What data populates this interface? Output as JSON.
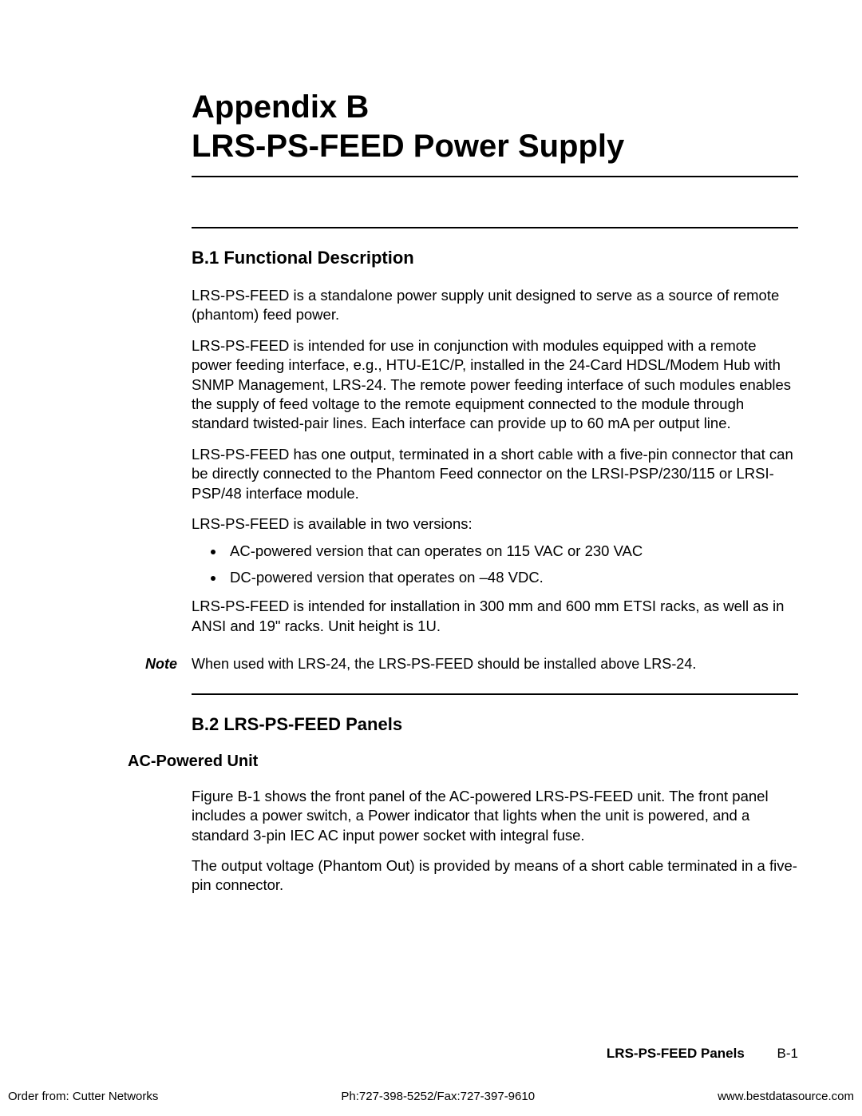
{
  "title": {
    "line1": "Appendix B",
    "line2": "LRS-PS-FEED Power Supply"
  },
  "section1": {
    "heading": "B.1  Functional Description",
    "p1": "LRS-PS-FEED is a standalone power supply unit designed to serve as a source of remote (phantom) feed power.",
    "p2": "LRS-PS-FEED is intended for use in conjunction with modules equipped with a remote power feeding interface, e.g., HTU-E1C/P, installed in the 24-Card HDSL/Modem Hub with SNMP Management, LRS-24. The remote power feeding interface of such modules enables the supply of feed voltage to the remote equipment connected to the module through standard twisted-pair lines. Each interface can provide up to 60 mA per output line.",
    "p3": "LRS-PS-FEED has one output, terminated in a short cable with a five-pin connector that can be directly connected to the Phantom Feed connector on the LRSI-PSP/230/115 or LRSI-PSP/48 interface module.",
    "versions_intro": "LRS-PS-FEED is available in two versions:",
    "bullets": [
      "AC-powered version that can operates on 115 VAC or 230 VAC",
      "DC-powered version that operates on –48 VDC."
    ],
    "p4": "LRS-PS-FEED is intended for installation in 300 mm and 600 mm ETSI racks, as well as in ANSI and 19\" racks. Unit height is 1U."
  },
  "note": {
    "label": "Note",
    "text": "When used with LRS-24, the LRS-PS-FEED should be installed above LRS-24."
  },
  "section2": {
    "heading": "B.2  LRS-PS-FEED Panels",
    "sub_heading": "AC-Powered Unit",
    "p1": "Figure B-1 shows the front panel of the AC-powered LRS-PS-FEED unit. The front panel includes a power switch, a Power indicator that lights when the unit is powered, and a standard 3-pin IEC AC input power socket with integral fuse.",
    "p2": "The output voltage (Phantom Out) is provided by means of a short cable terminated in a five-pin connector."
  },
  "footer": {
    "section_name": "LRS-PS-FEED Panels",
    "page_num": "B-1",
    "left": "Order from: Cutter Networks",
    "center": "Ph:727-398-5252/Fax:727-397-9610",
    "right": "www.bestdatasource.com"
  }
}
